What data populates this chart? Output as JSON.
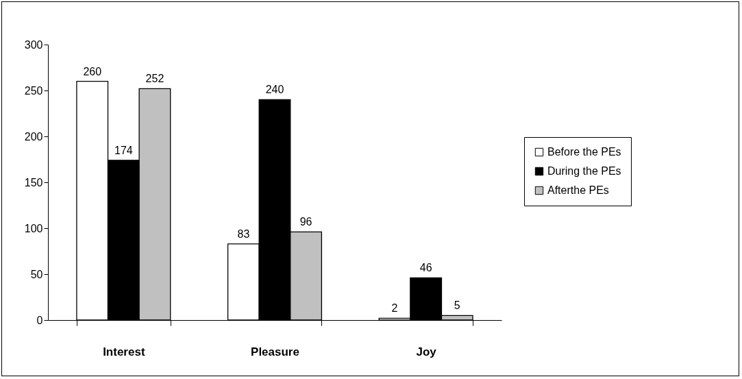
{
  "chart_data": {
    "type": "bar",
    "categories": [
      "Interest",
      "Pleasure",
      "Joy"
    ],
    "series": [
      {
        "name": "Before the PEs",
        "color": "#ffffff",
        "values": [
          260,
          83,
          2
        ]
      },
      {
        "name": "During the PEs",
        "color": "#000000",
        "values": [
          174,
          240,
          46
        ]
      },
      {
        "name": "Afterthe PEs",
        "color": "#c0c0c0",
        "values": [
          252,
          96,
          5
        ]
      }
    ],
    "ylim": [
      0,
      300
    ],
    "yticks": [
      0,
      50,
      100,
      150,
      200,
      250,
      300
    ],
    "data_labels": true,
    "legend": "right",
    "grid": false
  }
}
